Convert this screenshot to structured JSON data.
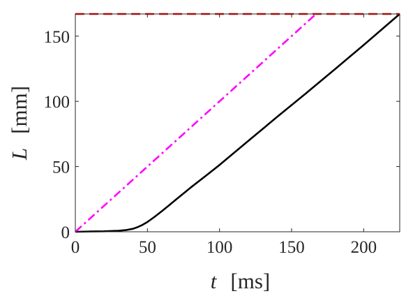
{
  "chart_data": {
    "type": "line",
    "title": "",
    "xlabel": {
      "symbol": "t",
      "unit": "[ms]"
    },
    "ylabel": {
      "symbol": "L",
      "unit": "[mm]"
    },
    "xlim": [
      0,
      225
    ],
    "ylim": [
      0,
      167
    ],
    "xticks": [
      0,
      50,
      100,
      150,
      200
    ],
    "yticks": [
      0,
      50,
      100,
      150
    ],
    "grid": false,
    "legend": "none",
    "series": [
      {
        "style": "solid",
        "color": "#000000",
        "x": [
          0,
          10,
          20,
          30,
          35,
          40,
          43,
          46,
          50,
          55,
          60,
          65,
          70,
          80,
          90,
          100,
          120,
          140,
          160,
          180,
          200,
          225
        ],
        "y": [
          0,
          0.2,
          0.4,
          0.8,
          1.3,
          2.3,
          3.5,
          5,
          7.5,
          11.5,
          15.8,
          20.3,
          24.9,
          33.9,
          42.5,
          51.2,
          69.7,
          88.1,
          106.2,
          124.6,
          143.2,
          167
        ]
      },
      {
        "style": "dash-dot",
        "color": "#ff00ff",
        "x": [
          0,
          167
        ],
        "y": [
          0,
          167
        ]
      },
      {
        "style": "dashed",
        "color": "#ff0000",
        "x": [
          0,
          225
        ],
        "y": [
          167,
          167
        ]
      }
    ]
  }
}
